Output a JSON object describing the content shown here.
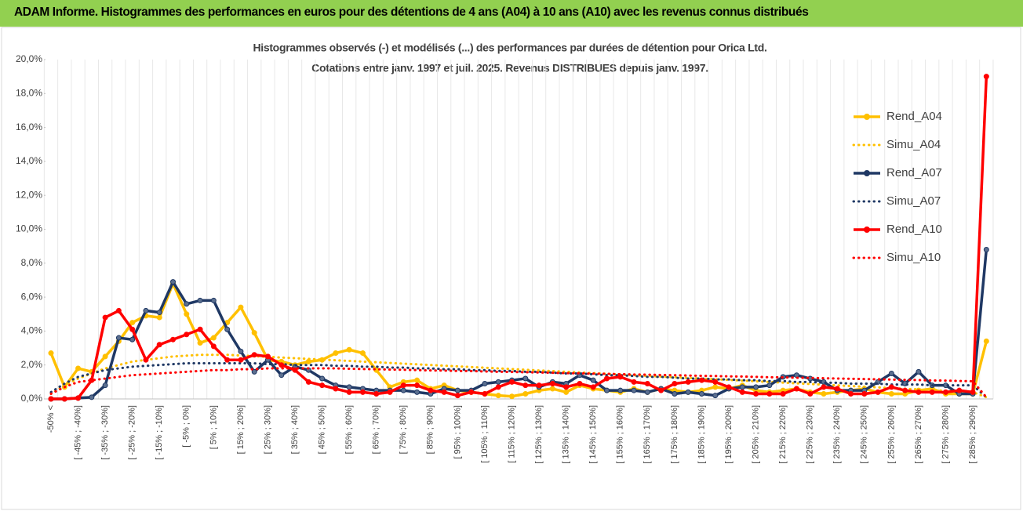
{
  "chart_data": {
    "type": "line",
    "title": "ADAM Informe. Histogrammes des performances en euros pour des détentions de 4 ans (A04) à 10 ans (A10) avec les revenus connus distribués",
    "subtitle": [
      "Histogrammes observés (-) et modélisés (...) des performances par durées de détention pour Orica Ltd.",
      "Cotations entre janv. 1997 et juil. 2025. Revenus DISTRIBUES depuis janv. 1997."
    ],
    "categories": [
      "-50% <",
      null,
      "[ -45% ; -40%]",
      null,
      "[ -35% ; -30%]",
      null,
      "[ -25% ; -20%]",
      null,
      "[ -15% ; -10%]",
      null,
      "[ -5% ; 0%]",
      null,
      "[ 5% ; 10%]",
      null,
      "[ 15% ; 20%]",
      null,
      "[ 25% ; 30%]",
      null,
      "[ 35% ; 40%]",
      null,
      "[ 45% ; 50%]",
      null,
      "[ 55% ; 60%]",
      null,
      "[ 65% ; 70%]",
      null,
      "[ 75% ; 80%]",
      null,
      "[ 85% ; 90%]",
      null,
      "[ 95% ; 100%]",
      null,
      "[ 105% ; 110%]",
      null,
      "[ 115% ; 120%]",
      null,
      "[ 125% ; 130%]",
      null,
      "[ 135% ; 140%]",
      null,
      "[ 145% ; 150%]",
      null,
      "[ 155% ; 160%]",
      null,
      "[ 165% ; 170%]",
      null,
      "[ 175% ; 180%]",
      null,
      "[ 185% ; 190%]",
      null,
      "[ 195% ; 200%]",
      null,
      "[ 205% ; 210%]",
      null,
      "[ 215% ; 220%]",
      null,
      "[ 225% ; 230%]",
      null,
      "[ 235% ; 240%]",
      null,
      "[ 245% ; 250%]",
      null,
      "[ 255% ; 260%]",
      null,
      "[ 265% ; 270%]",
      null,
      "[ 275% ; 280%]",
      null,
      "[ 285% ; 290%]",
      null
    ],
    "series": [
      {
        "name": "Rend_A04",
        "color": "#ffc000",
        "style": "solid",
        "markers": true,
        "values": [
          2.7,
          0.7,
          1.8,
          1.6,
          2.5,
          3.4,
          4.5,
          4.9,
          4.8,
          6.8,
          5.0,
          3.3,
          3.6,
          4.5,
          5.4,
          3.9,
          2.3,
          2.2,
          2.0,
          2.2,
          2.3,
          2.7,
          2.9,
          2.7,
          1.7,
          0.7,
          1.0,
          1.1,
          0.6,
          0.8,
          0.5,
          0.4,
          0.3,
          0.2,
          0.15,
          0.3,
          0.5,
          0.6,
          0.4,
          0.8,
          0.6,
          0.5,
          0.4,
          0.6,
          0.4,
          0.6,
          0.5,
          0.4,
          0.5,
          0.7,
          0.6,
          0.8,
          0.5,
          0.4,
          0.5,
          0.6,
          0.4,
          0.3,
          0.4,
          0.5,
          0.6,
          0.4,
          0.3,
          0.3,
          0.5,
          0.6,
          0.3,
          0.3,
          0.3,
          3.4
        ]
      },
      {
        "name": "Simu_A04",
        "color": "#ffc000",
        "style": "dotted",
        "markers": false,
        "values": [
          0.3,
          0.8,
          1.2,
          1.5,
          1.8,
          2.0,
          2.2,
          2.3,
          2.4,
          2.5,
          2.55,
          2.6,
          2.6,
          2.6,
          2.56,
          2.52,
          2.48,
          2.44,
          2.4,
          2.36,
          2.32,
          2.28,
          2.24,
          2.2,
          2.16,
          2.12,
          2.08,
          2.04,
          2.0,
          1.96,
          1.92,
          1.88,
          1.84,
          1.8,
          1.76,
          1.72,
          1.68,
          1.64,
          1.6,
          1.56,
          1.52,
          1.48,
          1.44,
          1.4,
          1.36,
          1.32,
          1.28,
          1.24,
          1.2,
          1.16,
          1.12,
          1.08,
          1.04,
          1.0,
          0.96,
          0.92,
          0.88,
          0.84,
          0.8,
          0.76,
          0.72,
          0.68,
          0.64,
          0.6,
          0.56,
          0.52,
          0.48,
          0.44,
          0.4,
          0.1
        ]
      },
      {
        "name": "Rend_A07",
        "color": "#1f3864",
        "style": "solid",
        "markers": true,
        "values": [
          0,
          0,
          0.05,
          0.1,
          0.8,
          3.6,
          3.5,
          5.2,
          5.1,
          6.9,
          5.6,
          5.8,
          5.8,
          4.1,
          2.8,
          1.6,
          2.3,
          1.4,
          1.9,
          1.7,
          1.2,
          0.8,
          0.7,
          0.6,
          0.5,
          0.5,
          0.5,
          0.4,
          0.3,
          0.6,
          0.5,
          0.5,
          0.9,
          1.0,
          1.1,
          1.2,
          0.7,
          1.0,
          0.9,
          1.4,
          1.1,
          0.5,
          0.5,
          0.5,
          0.4,
          0.6,
          0.3,
          0.4,
          0.3,
          0.2,
          0.6,
          0.7,
          0.7,
          0.8,
          1.3,
          1.4,
          1.2,
          1.0,
          0.5,
          0.5,
          0.5,
          1.0,
          1.5,
          0.9,
          1.6,
          0.8,
          0.8,
          0.3,
          0.3,
          8.8
        ]
      },
      {
        "name": "Simu_A07",
        "color": "#1f3864",
        "style": "dotted",
        "markers": false,
        "values": [
          0.4,
          0.9,
          1.3,
          1.5,
          1.7,
          1.8,
          1.9,
          1.95,
          2.0,
          2.05,
          2.1,
          2.1,
          2.1,
          2.1,
          2.1,
          2.1,
          2.05,
          2.05,
          2.0,
          2.0,
          2.0,
          1.95,
          1.95,
          1.9,
          1.9,
          1.85,
          1.85,
          1.8,
          1.8,
          1.75,
          1.75,
          1.7,
          1.7,
          1.65,
          1.65,
          1.6,
          1.6,
          1.55,
          1.5,
          1.5,
          1.45,
          1.4,
          1.4,
          1.35,
          1.3,
          1.3,
          1.25,
          1.2,
          1.2,
          1.15,
          1.15,
          1.1,
          1.1,
          1.05,
          1.05,
          1.0,
          1.0,
          0.95,
          0.95,
          0.9,
          0.9,
          0.9,
          0.85,
          0.85,
          0.85,
          0.8,
          0.8,
          0.8,
          0.8,
          0.1
        ]
      },
      {
        "name": "Rend_A10",
        "color": "#ff0000",
        "style": "solid",
        "markers": true,
        "values": [
          0,
          0,
          0.05,
          1.1,
          4.8,
          5.2,
          4.1,
          2.3,
          3.2,
          3.5,
          3.8,
          4.1,
          3.1,
          2.3,
          2.3,
          2.6,
          2.5,
          2.0,
          1.7,
          1.0,
          0.8,
          0.6,
          0.4,
          0.4,
          0.3,
          0.4,
          0.8,
          0.8,
          0.5,
          0.4,
          0.2,
          0.4,
          0.3,
          0.7,
          1.0,
          0.8,
          0.8,
          0.9,
          0.7,
          0.9,
          0.7,
          1.2,
          1.3,
          1.0,
          0.9,
          0.5,
          0.9,
          1.0,
          1.1,
          1.0,
          0.7,
          0.4,
          0.3,
          0.3,
          0.3,
          0.6,
          0.3,
          0.7,
          0.6,
          0.3,
          0.3,
          0.4,
          0.7,
          0.5,
          0.4,
          0.4,
          0.4,
          0.5,
          0.4,
          19.0
        ]
      },
      {
        "name": "Simu_A10",
        "color": "#ff0000",
        "style": "dotted",
        "markers": false,
        "values": [
          0.3,
          0.7,
          1.0,
          1.1,
          1.2,
          1.3,
          1.4,
          1.45,
          1.5,
          1.55,
          1.6,
          1.65,
          1.7,
          1.7,
          1.75,
          1.75,
          1.8,
          1.8,
          1.8,
          1.8,
          1.8,
          1.8,
          1.78,
          1.76,
          1.75,
          1.73,
          1.72,
          1.7,
          1.68,
          1.67,
          1.65,
          1.64,
          1.62,
          1.6,
          1.59,
          1.57,
          1.56,
          1.54,
          1.52,
          1.51,
          1.49,
          1.48,
          1.46,
          1.44,
          1.43,
          1.41,
          1.4,
          1.38,
          1.36,
          1.35,
          1.33,
          1.32,
          1.3,
          1.28,
          1.27,
          1.25,
          1.24,
          1.22,
          1.2,
          1.19,
          1.17,
          1.16,
          1.14,
          1.12,
          1.11,
          1.09,
          1.08,
          1.06,
          1.04,
          0.1
        ]
      }
    ],
    "ylim": [
      0,
      20
    ],
    "yticks": [
      {
        "value": 0,
        "label": "0,0%"
      },
      {
        "value": 2,
        "label": "2,0%"
      },
      {
        "value": 4,
        "label": "4,0%"
      },
      {
        "value": 6,
        "label": "6,0%"
      },
      {
        "value": 8,
        "label": "8,0%"
      },
      {
        "value": 10,
        "label": "10,0%"
      },
      {
        "value": 12,
        "label": "12,0%"
      },
      {
        "value": 14,
        "label": "14,0%"
      },
      {
        "value": 16,
        "label": "16,0%"
      },
      {
        "value": 18,
        "label": "18,0%"
      },
      {
        "value": 20,
        "label": "20,0%"
      }
    ],
    "grid": "x",
    "legend": "right"
  }
}
